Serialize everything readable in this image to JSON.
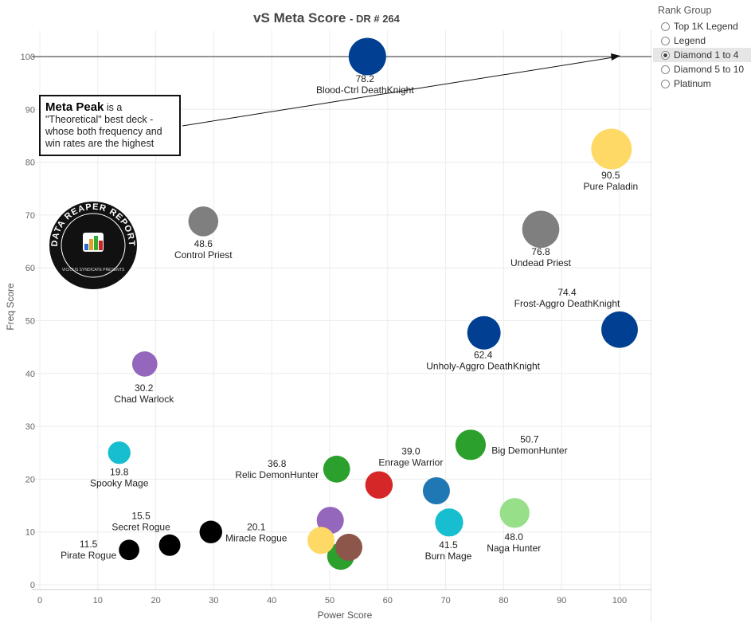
{
  "chart_data": {
    "type": "scatter",
    "title": "vS Meta Score",
    "subtitle": "- DR # 264",
    "xlabel": "Power Score",
    "ylabel": "Freq Score",
    "xlim": [
      0,
      105
    ],
    "ylim": [
      0,
      105
    ],
    "xticks": [
      0,
      10,
      20,
      30,
      40,
      50,
      60,
      70,
      80,
      90,
      100
    ],
    "yticks": [
      0,
      10,
      20,
      30,
      40,
      50,
      60,
      70,
      80,
      90,
      100
    ],
    "grid": true,
    "reference_line_y": 100,
    "points": [
      {
        "name": "Blood-Ctrl DeathKnight",
        "score": "78.2",
        "x": 56.5,
        "y": 100,
        "color": "#003f91"
      },
      {
        "name": "Pure Paladin",
        "score": "90.5",
        "x": 98.6,
        "y": 82.5,
        "color": "#ffd966"
      },
      {
        "name": "Control Priest",
        "score": "48.6",
        "x": 28.2,
        "y": 68.8,
        "color": "#7f7f7f"
      },
      {
        "name": "Undead Priest",
        "score": "76.8",
        "x": 86.4,
        "y": 67.3,
        "color": "#7f7f7f"
      },
      {
        "name": "Frost-Aggro DeathKnight",
        "score": "74.4",
        "x": 100,
        "y": 48.3,
        "color": "#003f91"
      },
      {
        "name": "Unholy-Aggro DeathKnight",
        "score": "62.4",
        "x": 76.6,
        "y": 47.7,
        "color": "#003f91"
      },
      {
        "name": "Chad Warlock",
        "score": "30.2",
        "x": 18.1,
        "y": 41.8,
        "color": "#9467bd"
      },
      {
        "name": "Spooky Mage",
        "score": "19.8",
        "x": 13.7,
        "y": 25.0,
        "color": "#17becf"
      },
      {
        "name": "Big DemonHunter",
        "score": "50.7",
        "x": 74.3,
        "y": 26.5,
        "color": "#2ca02c"
      },
      {
        "name": "Relic DemonHunter",
        "score": "36.8",
        "x": 51.2,
        "y": 21.9,
        "color": "#2ca02c"
      },
      {
        "name": "Enrage Warrior",
        "score": "39.0",
        "x": 58.5,
        "y": 18.9,
        "color": "#d62728"
      },
      {
        "name": "",
        "score": "",
        "x": 68.4,
        "y": 17.8,
        "color": "#1f77b4"
      },
      {
        "name": "Naga Hunter",
        "score": "48.0",
        "x": 81.9,
        "y": 13.6,
        "color": "#98df8a"
      },
      {
        "name": "Burn Mage",
        "score": "41.5",
        "x": 70.6,
        "y": 11.8,
        "color": "#17becf"
      },
      {
        "name": "",
        "score": "",
        "x": 50.1,
        "y": 12.2,
        "color": "#9467bd"
      },
      {
        "name": "",
        "score": "",
        "x": 51.9,
        "y": 5.4,
        "color": "#2ca02c"
      },
      {
        "name": "",
        "score": "",
        "x": 48.5,
        "y": 8.4,
        "color": "#ffd966"
      },
      {
        "name": "",
        "score": "",
        "x": 53.3,
        "y": 7.1,
        "color": "#8c564b"
      },
      {
        "name": "Miracle Rogue",
        "score": "20.1",
        "x": 29.5,
        "y": 10.0,
        "color": "#000000"
      },
      {
        "name": "Secret Rogue",
        "score": "15.5",
        "x": 22.4,
        "y": 7.5,
        "color": "#000000"
      },
      {
        "name": "Pirate Rogue",
        "score": "11.5",
        "x": 15.4,
        "y": 6.6,
        "color": "#000000"
      }
    ],
    "annotation": {
      "bold": "Meta Peak",
      "text": " is a \"Theoretical\" best deck - whose both frequency and win rates are the highest"
    }
  },
  "legend": {
    "title": "Rank Group",
    "options": [
      "Top 1K Legend",
      "Legend",
      "Diamond 1 to 4",
      "Diamond 5 to 10",
      "Platinum"
    ],
    "selected": "Diamond 1 to 4"
  },
  "logo": {
    "text": "DATA REAPER REPORT",
    "subtext": "VICIOUS SYNDICATE PRESENTS"
  }
}
